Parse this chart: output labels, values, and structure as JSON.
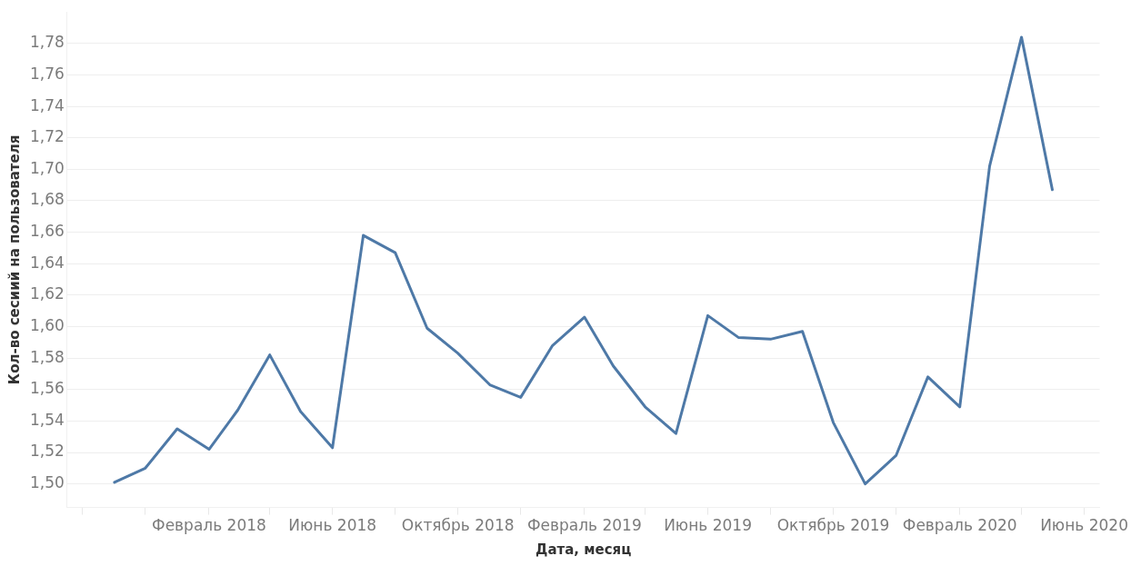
{
  "chart_data": {
    "type": "line",
    "xlabel": "Дата, месяц",
    "ylabel": "Кол-во сесиий на пользователя",
    "x": [
      "2017-11",
      "2017-12",
      "2018-01",
      "2018-02",
      "2018-03",
      "2018-04",
      "2018-05",
      "2018-06",
      "2018-07",
      "2018-08",
      "2018-09",
      "2018-10",
      "2018-11",
      "2018-12",
      "2019-01",
      "2019-02",
      "2019-03",
      "2019-04",
      "2019-05",
      "2019-06",
      "2019-07",
      "2019-08",
      "2019-09",
      "2019-10",
      "2019-11",
      "2019-12",
      "2020-01",
      "2020-02",
      "2020-03",
      "2020-04",
      "2020-05"
    ],
    "series": [
      {
        "color": "#4e79a7",
        "values": [
          1.501,
          1.51,
          1.535,
          1.522,
          1.547,
          1.582,
          1.546,
          1.523,
          1.658,
          1.647,
          1.599,
          1.583,
          1.563,
          1.555,
          1.588,
          1.606,
          1.575,
          1.549,
          1.532,
          1.607,
          1.593,
          1.592,
          1.597,
          1.539,
          1.5,
          1.518,
          1.568,
          1.549,
          1.702,
          1.784,
          1.687
        ]
      }
    ],
    "xlim": [
      "2017-09-16",
      "2020-06-16"
    ],
    "xticks": [
      {
        "value": "2017-10",
        "label": null
      },
      {
        "value": "2017-12",
        "label": null
      },
      {
        "value": "2018-02",
        "label": "Февраль 2018"
      },
      {
        "value": "2018-04",
        "label": null
      },
      {
        "value": "2018-06",
        "label": "Июнь 2018"
      },
      {
        "value": "2018-08",
        "label": null
      },
      {
        "value": "2018-10",
        "label": "Октябрь 2018"
      },
      {
        "value": "2018-12",
        "label": null
      },
      {
        "value": "2019-02",
        "label": "Февраль 2019"
      },
      {
        "value": "2019-04",
        "label": null
      },
      {
        "value": "2019-06",
        "label": "Июнь 2019"
      },
      {
        "value": "2019-08",
        "label": null
      },
      {
        "value": "2019-10",
        "label": "Октябрь 2019"
      },
      {
        "value": "2019-12",
        "label": null
      },
      {
        "value": "2020-02",
        "label": "Февраль 2020"
      },
      {
        "value": "2020-04",
        "label": null
      },
      {
        "value": "2020-06",
        "label": "Июнь 2020"
      }
    ],
    "ylim": [
      1.485,
      1.8
    ],
    "yticks": [
      {
        "value": 1.5,
        "label": "1,50"
      },
      {
        "value": 1.52,
        "label": "1,52"
      },
      {
        "value": 1.54,
        "label": "1,54"
      },
      {
        "value": 1.56,
        "label": "1,56"
      },
      {
        "value": 1.58,
        "label": "1,58"
      },
      {
        "value": 1.6,
        "label": "1,60"
      },
      {
        "value": 1.62,
        "label": "1,62"
      },
      {
        "value": 1.64,
        "label": "1,64"
      },
      {
        "value": 1.66,
        "label": "1,66"
      },
      {
        "value": 1.68,
        "label": "1,68"
      },
      {
        "value": 1.7,
        "label": "1,70"
      },
      {
        "value": 1.72,
        "label": "1,72"
      },
      {
        "value": 1.74,
        "label": "1,74"
      },
      {
        "value": 1.76,
        "label": "1,76"
      },
      {
        "value": 1.78,
        "label": "1,78"
      }
    ],
    "grid": "y",
    "legend": false,
    "marker": "none",
    "line_style": "solid"
  }
}
